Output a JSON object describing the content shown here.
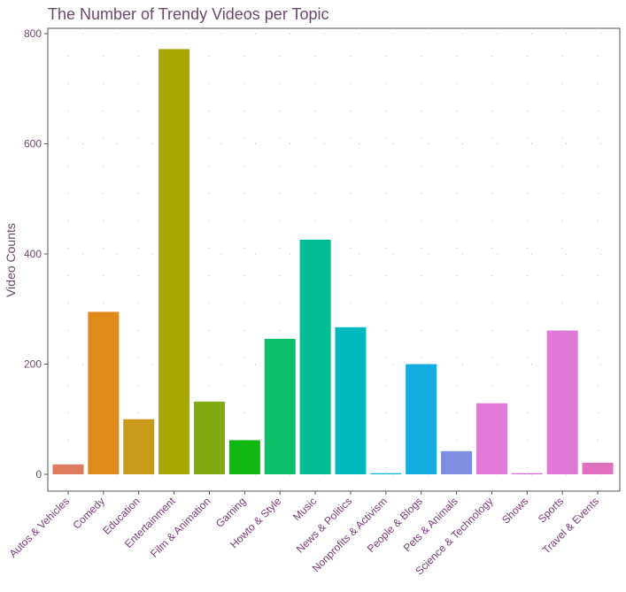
{
  "chart_data": {
    "type": "bar",
    "title": "The Number of Trendy Videos per Topic",
    "xlabel": "",
    "ylabel": "Video Counts",
    "ylim": [
      0,
      800
    ],
    "yticks": [
      0,
      200,
      400,
      600,
      800
    ],
    "grid": "dotted",
    "legend": "none",
    "categories": [
      "Autos & Vehicles",
      "Comedy",
      "Education",
      "Entertainment",
      "Film & Animation",
      "Gaming",
      "Howto & Style",
      "Music",
      "News & Politics",
      "Nonprofits & Activism",
      "People & Blogs",
      "Pets & Animals",
      "Science & Technology",
      "Shows",
      "Sports",
      "Travel & Events"
    ],
    "values": [
      18,
      295,
      100,
      772,
      132,
      62,
      246,
      426,
      267,
      2,
      200,
      42,
      129,
      2,
      261,
      21
    ],
    "colors": [
      "#e07a5f",
      "#e08a1c",
      "#c99a1a",
      "#a8a600",
      "#7fab10",
      "#12b812",
      "#0cbf6a",
      "#00bd93",
      "#00b9be",
      "#0cb5d6",
      "#12ace0",
      "#7f8fe0",
      "#e07ad6",
      "#d46ccf",
      "#e078d6",
      "#e06fc0"
    ]
  }
}
